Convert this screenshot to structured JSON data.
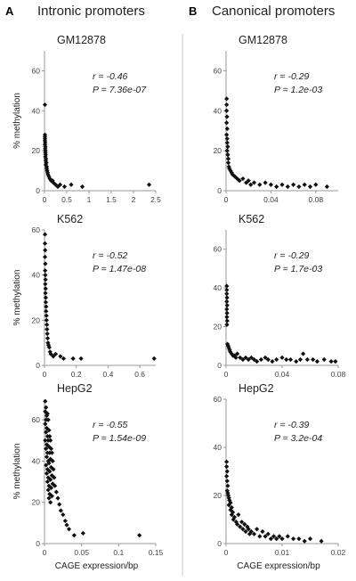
{
  "figure": {
    "panel_a": {
      "letter": "A",
      "title": "Intronic promoters"
    },
    "panel_b": {
      "letter": "B",
      "title": "Canonical promoters"
    }
  },
  "chart_data": [
    {
      "type": "scatter",
      "column": "A",
      "row": 0,
      "title": "GM12878",
      "xlabel": "",
      "ylabel": "% methylation",
      "xlim": [
        0,
        2.5
      ],
      "ylim": [
        0,
        70
      ],
      "xticks": [
        0,
        0.5,
        1,
        1.5,
        2,
        2.5
      ],
      "xtick_labels": [
        "0",
        "0.5",
        "1",
        "1.5",
        "2",
        "2.5"
      ],
      "yticks": [
        0,
        20,
        40,
        60
      ],
      "ytick_labels": [
        "0",
        "20",
        "40",
        "60"
      ],
      "annotations": [
        "r = -0.46",
        "P = 7.36e-07"
      ],
      "points": [
        [
          0.01,
          43
        ],
        [
          0.01,
          28
        ],
        [
          0.01,
          27
        ],
        [
          0.01,
          26
        ],
        [
          0.01,
          25
        ],
        [
          0.015,
          24
        ],
        [
          0.01,
          23
        ],
        [
          0.02,
          22
        ],
        [
          0.015,
          21
        ],
        [
          0.02,
          20
        ],
        [
          0.02,
          19
        ],
        [
          0.025,
          18
        ],
        [
          0.02,
          17
        ],
        [
          0.03,
          16
        ],
        [
          0.03,
          15
        ],
        [
          0.04,
          14
        ],
        [
          0.03,
          13
        ],
        [
          0.05,
          12
        ],
        [
          0.05,
          11
        ],
        [
          0.06,
          10
        ],
        [
          0.07,
          9
        ],
        [
          0.08,
          8
        ],
        [
          0.1,
          7
        ],
        [
          0.12,
          6
        ],
        [
          0.15,
          5
        ],
        [
          0.18,
          5
        ],
        [
          0.2,
          4
        ],
        [
          0.25,
          3
        ],
        [
          0.3,
          2
        ],
        [
          0.35,
          3
        ],
        [
          0.45,
          2
        ],
        [
          0.6,
          3
        ],
        [
          0.85,
          2
        ],
        [
          2.35,
          3
        ]
      ]
    },
    {
      "type": "scatter",
      "column": "B",
      "row": 0,
      "title": "GM12878",
      "xlabel": "",
      "ylabel": "",
      "xlim": [
        0,
        0.1
      ],
      "ylim": [
        0,
        70
      ],
      "xticks": [
        0,
        0.04,
        0.08
      ],
      "xtick_labels": [
        "0",
        "0.04",
        "0.08"
      ],
      "yticks": [
        0,
        20,
        40,
        60
      ],
      "ytick_labels": [
        "0",
        "20",
        "40",
        "60"
      ],
      "annotations": [
        "r = -0.29",
        "P = 1.2e-03"
      ],
      "points": [
        [
          0.0005,
          46
        ],
        [
          0.0005,
          43
        ],
        [
          0.0005,
          40
        ],
        [
          0.0008,
          37
        ],
        [
          0.0005,
          34
        ],
        [
          0.001,
          31
        ],
        [
          0.0005,
          28
        ],
        [
          0.001,
          26
        ],
        [
          0.001,
          24
        ],
        [
          0.0015,
          22
        ],
        [
          0.001,
          20
        ],
        [
          0.0015,
          18
        ],
        [
          0.002,
          16
        ],
        [
          0.002,
          14
        ],
        [
          0.0025,
          12
        ],
        [
          0.003,
          11
        ],
        [
          0.004,
          10
        ],
        [
          0.005,
          9
        ],
        [
          0.006,
          8
        ],
        [
          0.008,
          7
        ],
        [
          0.01,
          6
        ],
        [
          0.012,
          5
        ],
        [
          0.015,
          6
        ],
        [
          0.018,
          4
        ],
        [
          0.02,
          5
        ],
        [
          0.022,
          3
        ],
        [
          0.025,
          4
        ],
        [
          0.03,
          3
        ],
        [
          0.035,
          4
        ],
        [
          0.04,
          3
        ],
        [
          0.045,
          2
        ],
        [
          0.05,
          3
        ],
        [
          0.055,
          2
        ],
        [
          0.06,
          3
        ],
        [
          0.065,
          2
        ],
        [
          0.07,
          3
        ],
        [
          0.075,
          2
        ],
        [
          0.08,
          3
        ],
        [
          0.09,
          2
        ]
      ]
    },
    {
      "type": "scatter",
      "column": "A",
      "row": 1,
      "title": "K562",
      "xlabel": "",
      "ylabel": "% methylation",
      "xlim": [
        0,
        0.7
      ],
      "ylim": [
        0,
        60
      ],
      "xticks": [
        0,
        0.2,
        0.4,
        0.6
      ],
      "xtick_labels": [
        "0",
        "0.2",
        "0.4",
        "0.6"
      ],
      "yticks": [
        0,
        20,
        40,
        60
      ],
      "ytick_labels": [
        "0",
        "20",
        "40",
        "60"
      ],
      "annotations": [
        "r = -0.52",
        "P = 1.47e-08"
      ],
      "points": [
        [
          0.003,
          58
        ],
        [
          0.003,
          54
        ],
        [
          0.004,
          51
        ],
        [
          0.003,
          48
        ],
        [
          0.005,
          45
        ],
        [
          0.004,
          42
        ],
        [
          0.005,
          40
        ],
        [
          0.006,
          38
        ],
        [
          0.005,
          36
        ],
        [
          0.007,
          34
        ],
        [
          0.006,
          32
        ],
        [
          0.008,
          30
        ],
        [
          0.008,
          28
        ],
        [
          0.01,
          26
        ],
        [
          0.01,
          24
        ],
        [
          0.012,
          22
        ],
        [
          0.013,
          20
        ],
        [
          0.015,
          18
        ],
        [
          0.016,
          16
        ],
        [
          0.018,
          14
        ],
        [
          0.02,
          12
        ],
        [
          0.022,
          10
        ],
        [
          0.025,
          9
        ],
        [
          0.03,
          8
        ],
        [
          0.035,
          6
        ],
        [
          0.04,
          5
        ],
        [
          0.055,
          4
        ],
        [
          0.07,
          5
        ],
        [
          0.1,
          4
        ],
        [
          0.12,
          3
        ],
        [
          0.18,
          3
        ],
        [
          0.23,
          3
        ],
        [
          0.69,
          3
        ]
      ]
    },
    {
      "type": "scatter",
      "column": "B",
      "row": 1,
      "title": "K562",
      "xlabel": "",
      "ylabel": "",
      "xlim": [
        0,
        0.08
      ],
      "ylim": [
        0,
        70
      ],
      "xticks": [
        0,
        0.04,
        0.08
      ],
      "xtick_labels": [
        "0",
        "0.04",
        "0.08"
      ],
      "yticks": [
        0,
        20,
        40,
        60
      ],
      "ytick_labels": [
        "0",
        "20",
        "40",
        "60"
      ],
      "annotations": [
        "r = -0.29",
        "P = 1.7e-03"
      ],
      "points": [
        [
          0.0005,
          41
        ],
        [
          0.0005,
          39
        ],
        [
          0.0005,
          37
        ],
        [
          0.0007,
          35
        ],
        [
          0.0005,
          33
        ],
        [
          0.0008,
          31
        ],
        [
          0.0005,
          29
        ],
        [
          0.0007,
          27
        ],
        [
          0.0006,
          25
        ],
        [
          0.0008,
          23
        ],
        [
          0.0006,
          21
        ],
        [
          0.001,
          11
        ],
        [
          0.0015,
          10
        ],
        [
          0.002,
          9
        ],
        [
          0.0025,
          8
        ],
        [
          0.003,
          7
        ],
        [
          0.004,
          6
        ],
        [
          0.005,
          5
        ],
        [
          0.006,
          5
        ],
        [
          0.007,
          4
        ],
        [
          0.008,
          6
        ],
        [
          0.01,
          4
        ],
        [
          0.012,
          3
        ],
        [
          0.014,
          4
        ],
        [
          0.016,
          3
        ],
        [
          0.018,
          4
        ],
        [
          0.02,
          3
        ],
        [
          0.022,
          2
        ],
        [
          0.025,
          3
        ],
        [
          0.028,
          4
        ],
        [
          0.03,
          3
        ],
        [
          0.033,
          2
        ],
        [
          0.036,
          3
        ],
        [
          0.04,
          4
        ],
        [
          0.043,
          3
        ],
        [
          0.046,
          3
        ],
        [
          0.05,
          2
        ],
        [
          0.053,
          3
        ],
        [
          0.055,
          6
        ],
        [
          0.058,
          3
        ],
        [
          0.062,
          3
        ],
        [
          0.065,
          2
        ],
        [
          0.07,
          3
        ],
        [
          0.075,
          2
        ],
        [
          0.078,
          2
        ]
      ]
    },
    {
      "type": "scatter",
      "column": "A",
      "row": 2,
      "title": "HepG2",
      "xlabel": "CAGE expression/bp",
      "ylabel": "% methylation",
      "xlim": [
        0,
        0.15
      ],
      "ylim": [
        0,
        70
      ],
      "xticks": [
        0,
        0.05,
        0.1,
        0.15
      ],
      "xtick_labels": [
        "0",
        "0.05",
        "0.1",
        "0.15"
      ],
      "yticks": [
        0,
        20,
        40,
        60
      ],
      "ytick_labels": [
        "0",
        "20",
        "40",
        "60"
      ],
      "annotations": [
        "r = -0.55",
        "P = 1.54e-09"
      ],
      "points": [
        [
          0.001,
          69
        ],
        [
          0.002,
          66
        ],
        [
          0.001,
          64
        ],
        [
          0.003,
          62
        ],
        [
          0.002,
          60
        ],
        [
          0.004,
          63
        ],
        [
          0.001,
          58
        ],
        [
          0.003,
          56
        ],
        [
          0.005,
          60
        ],
        [
          0.002,
          54
        ],
        [
          0.004,
          52
        ],
        [
          0.006,
          55
        ],
        [
          0.001,
          50
        ],
        [
          0.003,
          48
        ],
        [
          0.005,
          50
        ],
        [
          0.007,
          52
        ],
        [
          0.002,
          46
        ],
        [
          0.004,
          44
        ],
        [
          0.006,
          47
        ],
        [
          0.008,
          50
        ],
        [
          0.003,
          42
        ],
        [
          0.005,
          40
        ],
        [
          0.007,
          44
        ],
        [
          0.009,
          46
        ],
        [
          0.002,
          38
        ],
        [
          0.004,
          36
        ],
        [
          0.006,
          39
        ],
        [
          0.008,
          41
        ],
        [
          0.01,
          44
        ],
        [
          0.003,
          34
        ],
        [
          0.005,
          32
        ],
        [
          0.007,
          35
        ],
        [
          0.009,
          37
        ],
        [
          0.011,
          40
        ],
        [
          0.004,
          30
        ],
        [
          0.006,
          28
        ],
        [
          0.008,
          31
        ],
        [
          0.01,
          33
        ],
        [
          0.012,
          36
        ],
        [
          0.005,
          26
        ],
        [
          0.007,
          24
        ],
        [
          0.009,
          27
        ],
        [
          0.011,
          29
        ],
        [
          0.013,
          32
        ],
        [
          0.006,
          22
        ],
        [
          0.008,
          20
        ],
        [
          0.01,
          23
        ],
        [
          0.014,
          28
        ],
        [
          0.016,
          25
        ],
        [
          0.018,
          22
        ],
        [
          0.02,
          19
        ],
        [
          0.022,
          16
        ],
        [
          0.025,
          14
        ],
        [
          0.028,
          11
        ],
        [
          0.03,
          9
        ],
        [
          0.033,
          7
        ],
        [
          0.04,
          4
        ],
        [
          0.052,
          5
        ],
        [
          0.128,
          4
        ]
      ]
    },
    {
      "type": "scatter",
      "column": "B",
      "row": 2,
      "title": "HepG2",
      "xlabel": "CAGE expression/bp",
      "ylabel": "",
      "xlim": [
        0,
        0.02
      ],
      "ylim": [
        0,
        60
      ],
      "xticks": [
        0,
        0.01,
        0.02
      ],
      "xtick_labels": [
        "0",
        "0.01",
        "0.02"
      ],
      "yticks": [
        0,
        20,
        40,
        60
      ],
      "ytick_labels": [
        "0",
        "20",
        "40",
        "60"
      ],
      "annotations": [
        "r = -0.39",
        "P = 3.2e-04"
      ],
      "points": [
        [
          0.0001,
          34
        ],
        [
          0.0001,
          32
        ],
        [
          0.0002,
          30
        ],
        [
          0.0001,
          28
        ],
        [
          0.0002,
          26
        ],
        [
          0.0003,
          24
        ],
        [
          0.0002,
          22
        ],
        [
          0.0003,
          21
        ],
        [
          0.0004,
          20
        ],
        [
          0.0005,
          19
        ],
        [
          0.0006,
          18
        ],
        [
          0.0008,
          17
        ],
        [
          0.0005,
          16
        ],
        [
          0.001,
          15
        ],
        [
          0.0008,
          14
        ],
        [
          0.0012,
          13
        ],
        [
          0.001,
          12
        ],
        [
          0.0015,
          11
        ],
        [
          0.0013,
          10
        ],
        [
          0.0018,
          9
        ],
        [
          0.002,
          8
        ],
        [
          0.0022,
          12
        ],
        [
          0.0025,
          7
        ],
        [
          0.0028,
          9
        ],
        [
          0.003,
          6
        ],
        [
          0.0033,
          8
        ],
        [
          0.0035,
          5
        ],
        [
          0.0038,
          7
        ],
        [
          0.004,
          6
        ],
        [
          0.0042,
          4
        ],
        [
          0.0045,
          5
        ],
        [
          0.005,
          4
        ],
        [
          0.0055,
          6
        ],
        [
          0.006,
          3
        ],
        [
          0.0065,
          5
        ],
        [
          0.007,
          3
        ],
        [
          0.0075,
          4
        ],
        [
          0.008,
          2
        ],
        [
          0.0085,
          3
        ],
        [
          0.009,
          2
        ],
        [
          0.0095,
          3
        ],
        [
          0.01,
          2
        ],
        [
          0.011,
          3
        ],
        [
          0.012,
          2
        ],
        [
          0.013,
          2
        ],
        [
          0.014,
          1
        ],
        [
          0.015,
          2
        ],
        [
          0.017,
          1
        ]
      ]
    }
  ]
}
